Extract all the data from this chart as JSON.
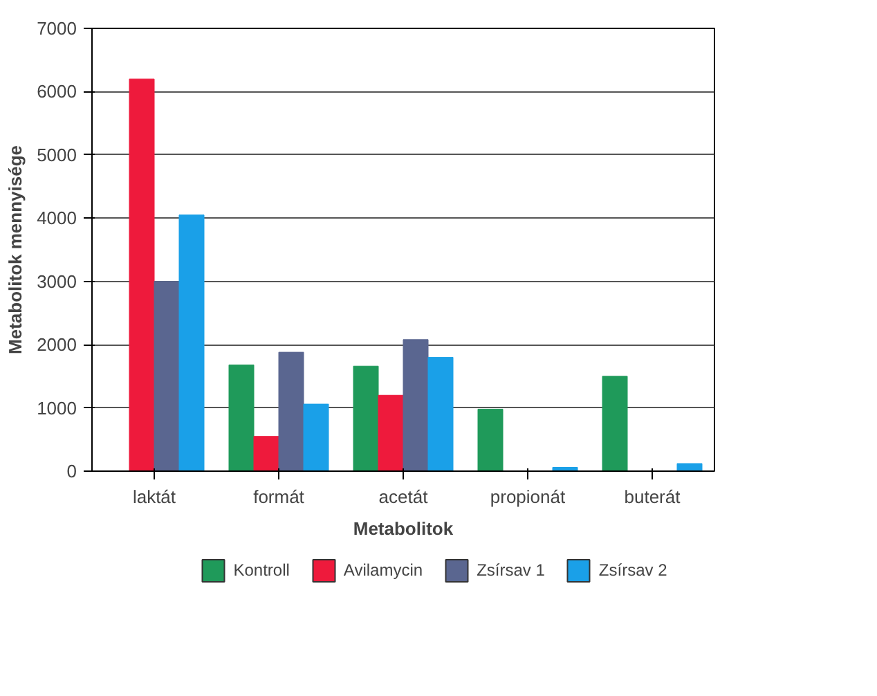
{
  "chart_data": {
    "type": "bar",
    "xlabel": "Metabolitok",
    "ylabel": "Metabolitok mennyisége",
    "categories": [
      "laktát",
      "formát",
      "acetát",
      "propionát",
      "buterát"
    ],
    "series": [
      {
        "name": "Kontroll",
        "color": "#1f9a5a",
        "values": [
          null,
          1680,
          1660,
          980,
          1500
        ]
      },
      {
        "name": "Avilamycin",
        "color": "#ee1a3c",
        "values": [
          6200,
          550,
          1200,
          0,
          null
        ]
      },
      {
        "name": "Zsírsav 1",
        "color": "#5a6690",
        "values": [
          3000,
          1880,
          2080,
          null,
          null
        ]
      },
      {
        "name": "Zsírsav 2",
        "color": "#1aa0e8",
        "values": [
          4050,
          1060,
          1800,
          60,
          120
        ]
      }
    ],
    "ylim": [
      0,
      7000
    ],
    "yticks": [
      0,
      1000,
      2000,
      3000,
      4000,
      5000,
      6000,
      7000
    ],
    "grid": "y",
    "legend": "bottom"
  }
}
